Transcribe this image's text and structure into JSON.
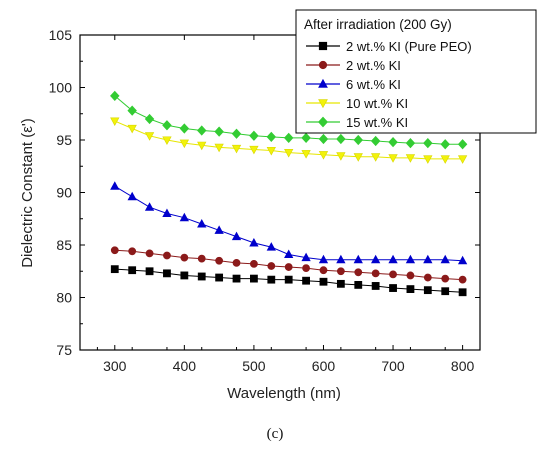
{
  "chart_data": {
    "type": "line",
    "title": "",
    "xlabel": "Wavelength (nm)",
    "ylabel": "Dielectric Constant (ε')",
    "xlim": [
      250,
      825
    ],
    "ylim": [
      75,
      105
    ],
    "xticks": [
      300,
      400,
      500,
      600,
      700,
      800
    ],
    "yticks": [
      75,
      80,
      85,
      90,
      95,
      100,
      105
    ],
    "grid": false,
    "legend": {
      "title": "After irradiation (200 Gy)",
      "position": "top-right"
    },
    "x": [
      300,
      325,
      350,
      375,
      400,
      425,
      450,
      475,
      500,
      525,
      550,
      575,
      600,
      625,
      650,
      675,
      700,
      725,
      750,
      775,
      800
    ],
    "series": [
      {
        "name": "2 wt.% KI (Pure PEO)",
        "color": "#000000",
        "marker": "square",
        "values": [
          82.7,
          82.6,
          82.5,
          82.3,
          82.1,
          82.0,
          81.9,
          81.8,
          81.8,
          81.7,
          81.7,
          81.6,
          81.5,
          81.3,
          81.2,
          81.1,
          80.9,
          80.8,
          80.7,
          80.6,
          80.5
        ]
      },
      {
        "name": "2 wt.% KI",
        "color": "#8b1a1a",
        "marker": "circle",
        "values": [
          84.5,
          84.4,
          84.2,
          84.0,
          83.8,
          83.7,
          83.5,
          83.3,
          83.2,
          83.0,
          82.9,
          82.8,
          82.6,
          82.5,
          82.4,
          82.3,
          82.2,
          82.1,
          81.9,
          81.8,
          81.7
        ]
      },
      {
        "name": "6 wt.% KI",
        "color": "#0000cc",
        "marker": "triangle-up",
        "values": [
          90.6,
          89.6,
          88.6,
          88.0,
          87.6,
          87.0,
          86.4,
          85.8,
          85.2,
          84.8,
          84.1,
          83.8,
          83.6,
          83.6,
          83.6,
          83.6,
          83.6,
          83.6,
          83.6,
          83.6,
          83.5
        ]
      },
      {
        "name": "10 wt.% KI",
        "color": "#f2f20a",
        "marker": "triangle-down",
        "values": [
          96.8,
          96.1,
          95.4,
          95.0,
          94.7,
          94.5,
          94.3,
          94.2,
          94.1,
          94.0,
          93.8,
          93.7,
          93.6,
          93.5,
          93.4,
          93.4,
          93.3,
          93.3,
          93.2,
          93.2,
          93.2
        ]
      },
      {
        "name": "15 wt.% KI",
        "color": "#33cc33",
        "marker": "diamond",
        "values": [
          99.2,
          97.8,
          97.0,
          96.4,
          96.1,
          95.9,
          95.8,
          95.6,
          95.4,
          95.3,
          95.2,
          95.2,
          95.1,
          95.1,
          95.0,
          94.9,
          94.8,
          94.7,
          94.7,
          94.6,
          94.6
        ]
      }
    ]
  },
  "caption": "(c)"
}
